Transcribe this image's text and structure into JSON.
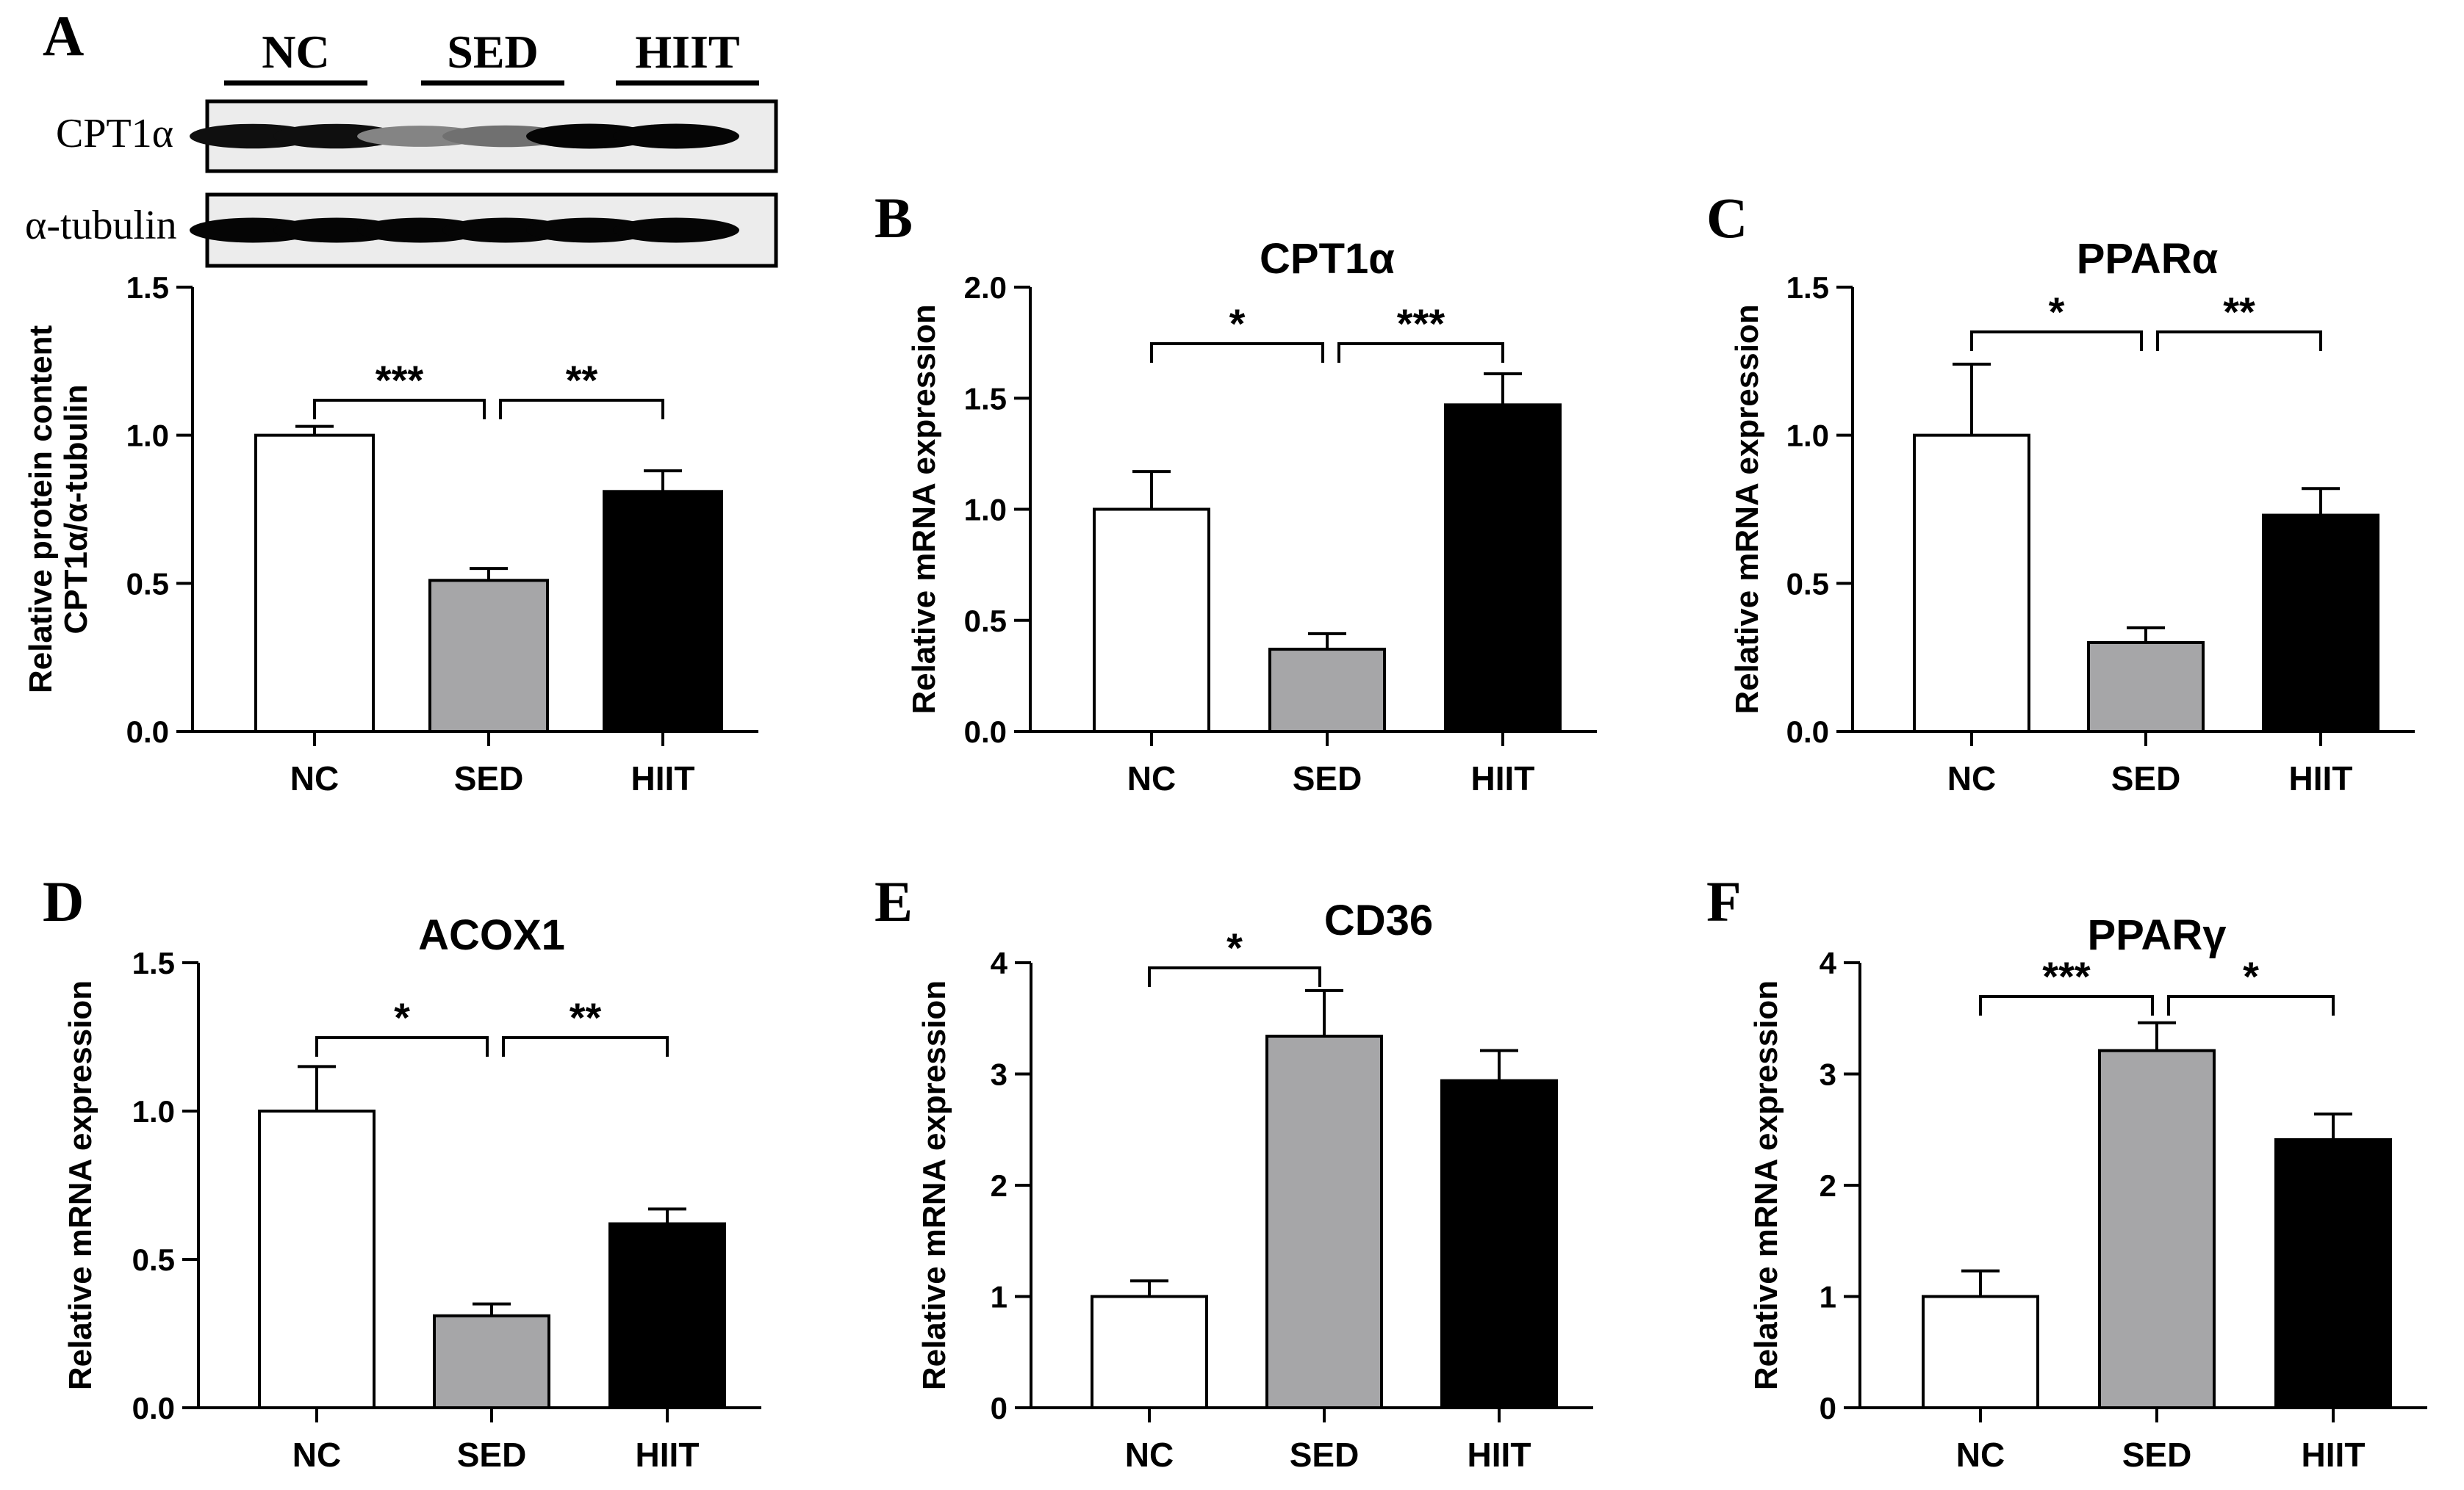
{
  "blot": {
    "groups": [
      "NC",
      "SED",
      "HIIT"
    ],
    "rows": [
      "CPT1α",
      "α-tubulin"
    ],
    "band_intensity": [
      [
        0.95,
        0.95,
        0.35,
        0.45,
        1.0,
        1.0
      ],
      [
        1.0,
        1.0,
        1.0,
        1.0,
        1.0,
        1.0
      ]
    ]
  },
  "colors": {
    "NC": "#ffffff",
    "SED": "#a6a6a8",
    "HIIT": "#000000",
    "axis": "#000000"
  },
  "chart_data": [
    {
      "panel": "A",
      "type": "bar",
      "title": "",
      "ylabel_lines": [
        "Relative protein content",
        "CPT1α/α-tubulin"
      ],
      "categories": [
        "NC",
        "SED",
        "HIIT"
      ],
      "values": [
        1.0,
        0.51,
        0.81
      ],
      "errors": [
        0.03,
        0.04,
        0.07
      ],
      "ylim": [
        0,
        1.5
      ],
      "ticks": [
        0,
        0.5,
        1.0,
        1.5
      ],
      "tick_labels": [
        "0.0",
        "0.5",
        "1.0",
        "1.5"
      ],
      "significance": [
        {
          "from": 0,
          "to": 1,
          "label": "***"
        },
        {
          "from": 1,
          "to": 2,
          "label": "**"
        }
      ]
    },
    {
      "panel": "B",
      "type": "bar",
      "title": "CPT1α",
      "ylabel_lines": [
        "Relative mRNA expression"
      ],
      "categories": [
        "NC",
        "SED",
        "HIIT"
      ],
      "values": [
        1.0,
        0.37,
        1.47
      ],
      "errors": [
        0.17,
        0.07,
        0.14
      ],
      "ylim": [
        0,
        2.0
      ],
      "ticks": [
        0,
        0.5,
        1.0,
        1.5,
        2.0
      ],
      "tick_labels": [
        "0.0",
        "0.5",
        "1.0",
        "1.5",
        "2.0"
      ],
      "significance": [
        {
          "from": 0,
          "to": 1,
          "label": "*"
        },
        {
          "from": 1,
          "to": 2,
          "label": "***"
        }
      ]
    },
    {
      "panel": "C",
      "type": "bar",
      "title": "PPARα",
      "ylabel_lines": [
        "Relative mRNA expression"
      ],
      "categories": [
        "NC",
        "SED",
        "HIIT"
      ],
      "values": [
        1.0,
        0.3,
        0.73
      ],
      "errors": [
        0.24,
        0.05,
        0.09
      ],
      "ylim": [
        0,
        1.5
      ],
      "ticks": [
        0,
        0.5,
        1.0,
        1.5
      ],
      "tick_labels": [
        "0.0",
        "0.5",
        "1.0",
        "1.5"
      ],
      "significance": [
        {
          "from": 0,
          "to": 1,
          "label": "*"
        },
        {
          "from": 1,
          "to": 2,
          "label": "**"
        }
      ]
    },
    {
      "panel": "D",
      "type": "bar",
      "title": "ACOX1",
      "ylabel_lines": [
        "Relative mRNA expression"
      ],
      "categories": [
        "NC",
        "SED",
        "HIIT"
      ],
      "values": [
        1.0,
        0.31,
        0.62
      ],
      "errors": [
        0.15,
        0.04,
        0.05
      ],
      "ylim": [
        0,
        1.5
      ],
      "ticks": [
        0,
        0.5,
        1.0,
        1.5
      ],
      "tick_labels": [
        "0.0",
        "0.5",
        "1.0",
        "1.5"
      ],
      "significance": [
        {
          "from": 0,
          "to": 1,
          "label": "*"
        },
        {
          "from": 1,
          "to": 2,
          "label": "**"
        }
      ]
    },
    {
      "panel": "E",
      "type": "bar",
      "title": "CD36",
      "ylabel_lines": [
        "Relative mRNA expression"
      ],
      "categories": [
        "NC",
        "SED",
        "HIIT"
      ],
      "values": [
        1.0,
        3.34,
        2.94
      ],
      "errors": [
        0.14,
        0.41,
        0.27
      ],
      "ylim": [
        0,
        4
      ],
      "ticks": [
        0,
        1,
        2,
        3,
        4
      ],
      "tick_labels": [
        "0",
        "1",
        "2",
        "3",
        "4"
      ],
      "significance": [
        {
          "from": 0,
          "to": 1,
          "label": "*"
        }
      ]
    },
    {
      "panel": "F",
      "type": "bar",
      "title": "PPARγ",
      "ylabel_lines": [
        "Relative mRNA expression"
      ],
      "categories": [
        "NC",
        "SED",
        "HIIT"
      ],
      "values": [
        1.0,
        3.21,
        2.41
      ],
      "errors": [
        0.23,
        0.25,
        0.23
      ],
      "ylim": [
        0,
        4
      ],
      "ticks": [
        0,
        1,
        2,
        3,
        4
      ],
      "tick_labels": [
        "0",
        "1",
        "2",
        "3",
        "4"
      ],
      "significance": [
        {
          "from": 0,
          "to": 1,
          "label": "***"
        },
        {
          "from": 1,
          "to": 2,
          "label": "*"
        }
      ]
    }
  ]
}
